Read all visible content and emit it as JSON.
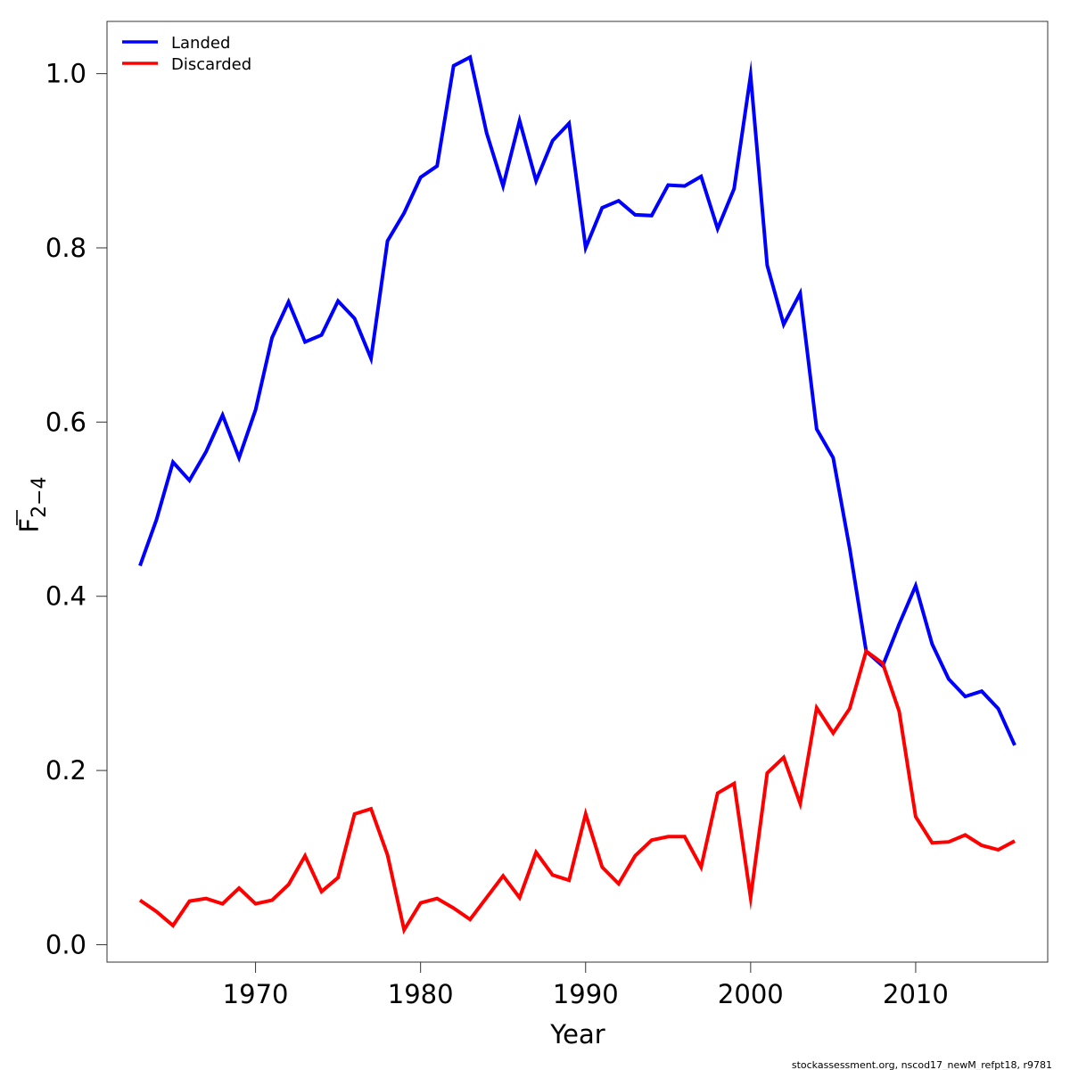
{
  "chart_data": {
    "type": "line",
    "xlabel": "Year",
    "ylabel_main": "F",
    "ylabel_sub": "2−4",
    "xlim": [
      1961,
      2018
    ],
    "ylim": [
      -0.02,
      1.06
    ],
    "x_ticks": [
      1970,
      1980,
      1990,
      2000,
      2010
    ],
    "x_tick_labels": [
      "1970",
      "1980",
      "1990",
      "2000",
      "2010"
    ],
    "y_ticks": [
      0.0,
      0.2,
      0.4,
      0.6,
      0.8,
      1.0
    ],
    "y_tick_labels": [
      "0.0",
      "0.2",
      "0.4",
      "0.6",
      "0.8",
      "1.0"
    ],
    "grid": false,
    "legend_position": "top-left",
    "x": [
      1963,
      1964,
      1965,
      1966,
      1967,
      1968,
      1969,
      1970,
      1971,
      1972,
      1973,
      1974,
      1975,
      1976,
      1977,
      1978,
      1979,
      1980,
      1981,
      1982,
      1983,
      1984,
      1985,
      1986,
      1987,
      1988,
      1989,
      1990,
      1991,
      1992,
      1993,
      1994,
      1995,
      1996,
      1997,
      1998,
      1999,
      2000,
      2001,
      2002,
      2003,
      2004,
      2005,
      2006,
      2007,
      2008,
      2009,
      2010,
      2011,
      2012,
      2013,
      2014,
      2015,
      2016
    ],
    "series": [
      {
        "name": "Landed",
        "color": "#0000ff",
        "values": [
          0.435,
          0.488,
          0.554,
          0.533,
          0.566,
          0.608,
          0.559,
          0.614,
          0.697,
          0.738,
          0.692,
          0.7,
          0.739,
          0.719,
          0.673,
          0.808,
          0.84,
          0.881,
          0.894,
          1.009,
          1.019,
          0.932,
          0.871,
          0.946,
          0.877,
          0.923,
          0.943,
          0.8,
          0.846,
          0.854,
          0.838,
          0.837,
          0.872,
          0.871,
          0.882,
          0.822,
          0.868,
          0.998,
          0.78,
          0.712,
          0.748,
          0.592,
          0.559,
          0.455,
          0.337,
          0.32,
          0.368,
          0.412,
          0.345,
          0.305,
          0.285,
          0.291,
          0.271,
          0.229
        ]
      },
      {
        "name": "Discarded",
        "color": "#ff0000",
        "values": [
          0.051,
          0.038,
          0.022,
          0.05,
          0.053,
          0.047,
          0.065,
          0.047,
          0.051,
          0.069,
          0.102,
          0.061,
          0.077,
          0.15,
          0.156,
          0.103,
          0.017,
          0.048,
          0.053,
          0.042,
          0.029,
          0.054,
          0.079,
          0.054,
          0.106,
          0.08,
          0.074,
          0.15,
          0.089,
          0.07,
          0.102,
          0.12,
          0.124,
          0.124,
          0.089,
          0.174,
          0.185,
          0.054,
          0.197,
          0.215,
          0.162,
          0.272,
          0.243,
          0.271,
          0.337,
          0.323,
          0.268,
          0.147,
          0.117,
          0.118,
          0.126,
          0.114,
          0.109,
          0.119
        ]
      }
    ],
    "footer_note": "stockassessment.org, nscod17_newM_refpt18, r9781"
  }
}
